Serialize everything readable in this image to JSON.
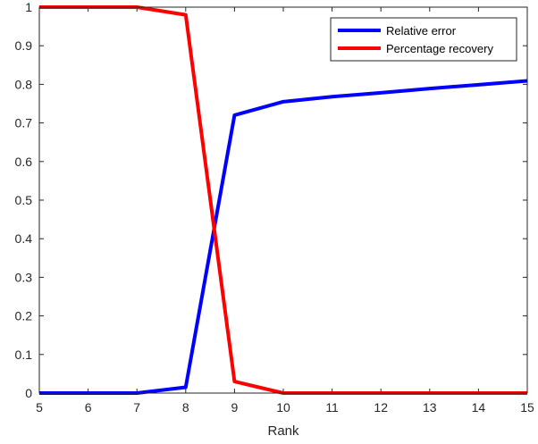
{
  "chart_data": {
    "type": "line",
    "title": "",
    "xlabel": "Rank",
    "ylabel": "",
    "xlim": [
      5,
      15
    ],
    "ylim": [
      0,
      1
    ],
    "xticks": [
      5,
      6,
      7,
      8,
      9,
      10,
      11,
      12,
      13,
      14,
      15
    ],
    "yticks": [
      0,
      0.1,
      0.2,
      0.3,
      0.4,
      0.5,
      0.6,
      0.7,
      0.8,
      0.9,
      1
    ],
    "grid": false,
    "legend_position": "top-right",
    "x": [
      5,
      6,
      7,
      8,
      9,
      10,
      11,
      12,
      13,
      14,
      15
    ],
    "series": [
      {
        "name": "Relative error",
        "color": "#0000ff",
        "values": [
          0,
          0,
          0,
          0.015,
          0.72,
          0.755,
          0.768,
          0.778,
          0.789,
          0.799,
          0.809
        ]
      },
      {
        "name": "Percentage recovery",
        "color": "#ff0000",
        "values": [
          1,
          1,
          1,
          0.98,
          0.03,
          0,
          0,
          0,
          0,
          0,
          0
        ]
      }
    ]
  }
}
